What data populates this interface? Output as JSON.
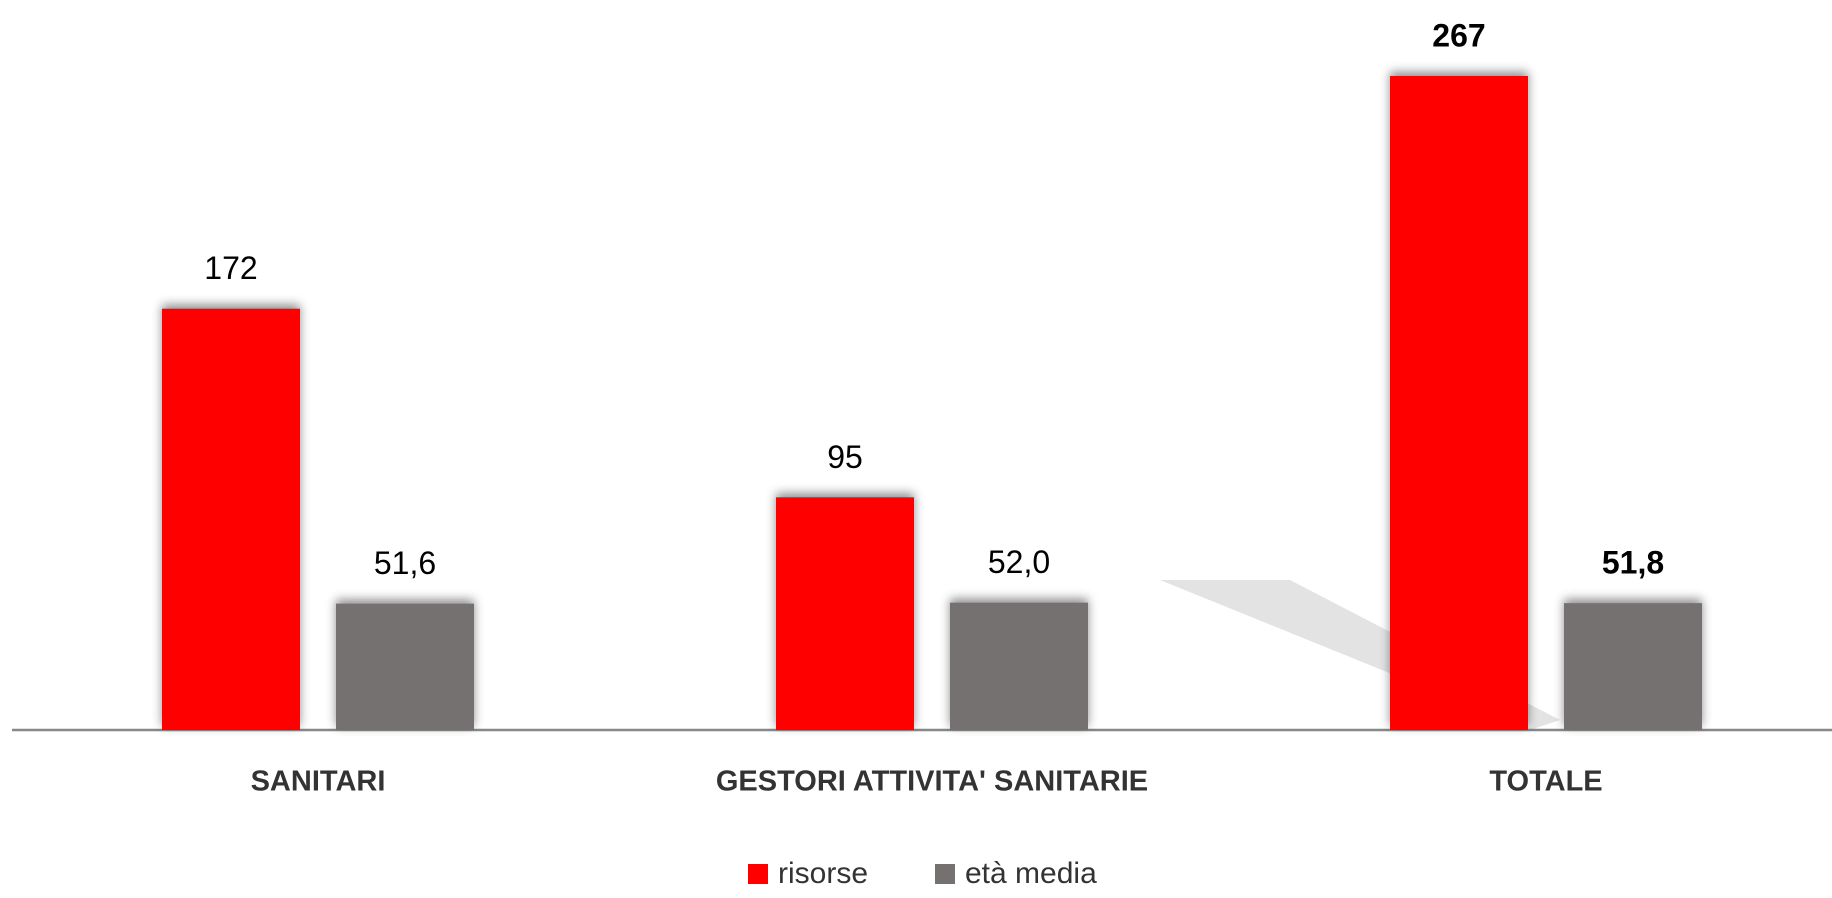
{
  "chart_data": {
    "type": "bar",
    "categories": [
      "SANITARI",
      "GESTORI ATTIVITA' SANITARIE",
      "TOTALE"
    ],
    "series": [
      {
        "name": "risorse",
        "color": "#ff0000",
        "values": [
          172,
          95,
          267
        ]
      },
      {
        "name": "età media",
        "color": "#767171",
        "values": [
          51.6,
          52.0,
          51.8
        ],
        "value_labels": [
          "51,6",
          "52,0",
          "51,8"
        ]
      }
    ],
    "legend": "bottom"
  }
}
